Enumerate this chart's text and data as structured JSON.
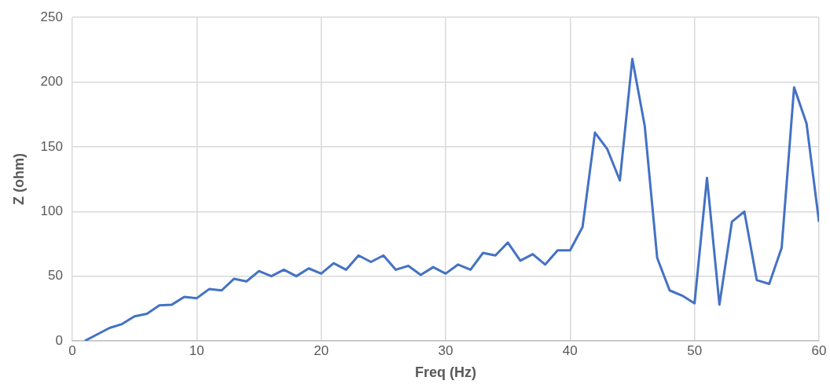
{
  "chart_data": {
    "type": "line",
    "xlabel": "Freq (Hz)",
    "ylabel": "Z (ohm)",
    "x": [
      1,
      2,
      3,
      4,
      5,
      6,
      7,
      8,
      9,
      10,
      11,
      12,
      13,
      14,
      15,
      16,
      17,
      18,
      19,
      20,
      21,
      22,
      23,
      24,
      25,
      26,
      27,
      28,
      29,
      30,
      31,
      32,
      33,
      34,
      35,
      36,
      37,
      38,
      39,
      40,
      41,
      42,
      43,
      44,
      45,
      46,
      47,
      48,
      49,
      50,
      51,
      52,
      53,
      54,
      55,
      56,
      57,
      58,
      59,
      60
    ],
    "series": [
      {
        "color": "#4472c4",
        "values": [
          0,
          5,
          10,
          13,
          19,
          21,
          27.5,
          28,
          34,
          33,
          40,
          39,
          48,
          46,
          54,
          50,
          55,
          50,
          56,
          52,
          60,
          55,
          66,
          61,
          66,
          55,
          58,
          51,
          57,
          52,
          59,
          55,
          68,
          66,
          76,
          62,
          67,
          59,
          70,
          70,
          88,
          161,
          148,
          124,
          218,
          166,
          64,
          39,
          35,
          29,
          126,
          28,
          92,
          100,
          47,
          44,
          72,
          196,
          168,
          92
        ]
      }
    ],
    "xlim": [
      0,
      60
    ],
    "xticks": [
      0,
      10,
      20,
      30,
      40,
      50,
      60
    ],
    "ylim": [
      0,
      250
    ],
    "yticks": [
      0,
      50,
      100,
      150,
      200,
      250
    ],
    "grid": true,
    "legend": false,
    "marker": "none",
    "line_style": "solid"
  }
}
